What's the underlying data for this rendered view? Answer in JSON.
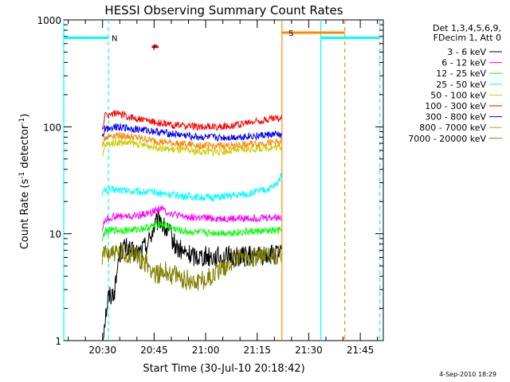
{
  "chart_data": {
    "type": "line",
    "title": "HESSI Observing Summary Count Rates",
    "xlabel": "Start Time (30-Jul-10 20:18:42)",
    "ylabel_main": "Count Rate (s",
    "ylabel_sup1": "-1",
    "ylabel_mid": " detector",
    "ylabel_sup2": "-1",
    "ylabel_end": ")",
    "footer": "4-Sep-2010 18:29",
    "yscale": "log",
    "ylim": [
      1,
      1000
    ],
    "xlim_minutes": [
      0,
      93
    ],
    "x_ticks": [
      {
        "label": "20:30",
        "minute": 11.3
      },
      {
        "label": "20:45",
        "minute": 26.3
      },
      {
        "label": "21:00",
        "minute": 41.3
      },
      {
        "label": "21:15",
        "minute": 56.3
      },
      {
        "label": "21:30",
        "minute": 71.3
      },
      {
        "label": "21:45",
        "minute": 86.3
      }
    ],
    "y_ticks": [
      {
        "label": "1",
        "value": 1
      },
      {
        "label": "10",
        "value": 10
      },
      {
        "label": "100",
        "value": 100
      },
      {
        "label": "1000",
        "value": 1000
      }
    ],
    "legend": {
      "header_line1": "Det 1,3,4,5,6,9,",
      "header_line2": "FDecim 1, Att 0"
    },
    "series": [
      {
        "name": "3 - 6 keV",
        "color": "#000000",
        "start": 11.2,
        "end": 63.5,
        "points": [
          [
            11.2,
            1
          ],
          [
            12,
            1.6
          ],
          [
            13,
            2.6
          ],
          [
            14,
            2.7
          ],
          [
            15,
            3.1
          ],
          [
            16,
            6.2
          ],
          [
            17,
            7.2
          ],
          [
            18,
            7.4
          ],
          [
            19,
            7.0
          ],
          [
            20,
            6.6
          ],
          [
            22,
            6.7
          ],
          [
            24,
            7.9
          ],
          [
            25,
            8.9
          ],
          [
            26,
            11.0
          ],
          [
            27,
            12.5
          ],
          [
            28,
            14.0
          ],
          [
            29,
            11.5
          ],
          [
            30,
            10.5
          ],
          [
            31,
            9.8
          ],
          [
            32,
            8.2
          ],
          [
            33,
            7.4
          ],
          [
            35,
            6.6
          ],
          [
            38,
            6.2
          ],
          [
            42,
            6.2
          ],
          [
            46,
            6.0
          ],
          [
            50,
            6.1
          ],
          [
            55,
            6.2
          ],
          [
            60,
            6.3
          ],
          [
            63.5,
            6.3
          ]
        ]
      },
      {
        "name": "6 - 12 keV",
        "color": "#ff00ff",
        "start": 11.2,
        "end": 63.5,
        "points": [
          [
            11.2,
            11
          ],
          [
            12,
            13.5
          ],
          [
            15,
            14.5
          ],
          [
            20,
            14.5
          ],
          [
            25,
            15.5
          ],
          [
            28,
            17.5
          ],
          [
            30,
            16
          ],
          [
            34,
            14.5
          ],
          [
            40,
            14
          ],
          [
            48,
            13.8
          ],
          [
            55,
            14
          ],
          [
            60,
            14.2
          ],
          [
            63.5,
            14.2
          ]
        ]
      },
      {
        "name": "12 - 25 keV",
        "color": "#00ff00",
        "start": 11.2,
        "end": 63.5,
        "points": [
          [
            11.2,
            9
          ],
          [
            12,
            10.5
          ],
          [
            15,
            10.8
          ],
          [
            20,
            10.8
          ],
          [
            25,
            11.5
          ],
          [
            28,
            12.5
          ],
          [
            30,
            11.8
          ],
          [
            34,
            10.6
          ],
          [
            40,
            10.2
          ],
          [
            48,
            10.2
          ],
          [
            55,
            10.5
          ],
          [
            60,
            10.6
          ],
          [
            63.5,
            10.7
          ]
        ]
      },
      {
        "name": "25 - 50 keV",
        "color": "#00ffff",
        "start": 11.2,
        "end": 63.5,
        "points": [
          [
            11.2,
            24
          ],
          [
            12,
            25.5
          ],
          [
            15,
            26
          ],
          [
            20,
            25
          ],
          [
            25,
            24.5
          ],
          [
            30,
            23.5
          ],
          [
            35,
            22.5
          ],
          [
            40,
            21.8
          ],
          [
            45,
            22
          ],
          [
            50,
            22.8
          ],
          [
            55,
            24
          ],
          [
            60,
            26.5
          ],
          [
            62,
            29
          ],
          [
            63.5,
            36
          ]
        ]
      },
      {
        "name": "50 - 100 keV",
        "color": "#cccc00",
        "start": 11.2,
        "end": 63.5,
        "points": [
          [
            11.2,
            50
          ],
          [
            12,
            67
          ],
          [
            15,
            72
          ],
          [
            20,
            70
          ],
          [
            25,
            66
          ],
          [
            30,
            62
          ],
          [
            35,
            60
          ],
          [
            40,
            58.5
          ],
          [
            45,
            58.5
          ],
          [
            50,
            60
          ],
          [
            55,
            62
          ],
          [
            60,
            64
          ],
          [
            63.5,
            65
          ]
        ]
      },
      {
        "name": "100 - 300 keV",
        "color": "#ff0000",
        "start": 11.2,
        "end": 63.5,
        "points": [
          [
            11.2,
            90
          ],
          [
            12,
            128
          ],
          [
            15,
            134
          ],
          [
            18,
            126
          ],
          [
            20,
            122
          ],
          [
            25,
            113
          ],
          [
            30,
            105
          ],
          [
            35,
            102
          ],
          [
            40,
            100
          ],
          [
            45,
            100
          ],
          [
            50,
            104
          ],
          [
            55,
            111
          ],
          [
            60,
            118
          ],
          [
            63.5,
            121
          ]
        ]
      },
      {
        "name": "300 - 800 keV",
        "color": "#0000ff",
        "start": 11.2,
        "end": 63.5,
        "points": [
          [
            11.2,
            80
          ],
          [
            12,
            96
          ],
          [
            15,
            101
          ],
          [
            20,
            96
          ],
          [
            25,
            92
          ],
          [
            30,
            87
          ],
          [
            35,
            83
          ],
          [
            40,
            80
          ],
          [
            45,
            79
          ],
          [
            50,
            80
          ],
          [
            55,
            82
          ],
          [
            60,
            84
          ],
          [
            63.5,
            85
          ]
        ]
      },
      {
        "name": "800 - 7000 keV",
        "color": "#ff8800",
        "start": 11.2,
        "end": 63.5,
        "points": [
          [
            11.2,
            65
          ],
          [
            12,
            80
          ],
          [
            15,
            84
          ],
          [
            20,
            80
          ],
          [
            25,
            75
          ],
          [
            30,
            71
          ],
          [
            35,
            69
          ],
          [
            40,
            67
          ],
          [
            45,
            66
          ],
          [
            50,
            67
          ],
          [
            55,
            69
          ],
          [
            60,
            71
          ],
          [
            63.5,
            72
          ]
        ]
      },
      {
        "name": "7000 - 20000 keV",
        "color": "#808000",
        "start": 11.2,
        "end": 63.5,
        "points": [
          [
            11.2,
            5.5
          ],
          [
            12,
            6.8
          ],
          [
            15,
            6.6
          ],
          [
            18,
            6.2
          ],
          [
            20,
            6.5
          ],
          [
            22,
            6.0
          ],
          [
            24,
            5.2
          ],
          [
            27,
            4.2
          ],
          [
            30,
            4.4
          ],
          [
            34,
            3.8
          ],
          [
            38,
            3.6
          ],
          [
            42,
            3.8
          ],
          [
            45,
            4.5
          ],
          [
            48,
            5.3
          ],
          [
            52,
            6.1
          ],
          [
            56,
            6.2
          ],
          [
            60,
            6.1
          ],
          [
            63.5,
            6.3
          ]
        ]
      }
    ],
    "annotations": [
      {
        "label": "N",
        "color": "#00ffff",
        "minute": 13.0,
        "value": 680
      },
      {
        "label": "F",
        "color": "#ff0000",
        "minute": 25.0,
        "value": 560
      },
      {
        "label": "S",
        "color": "#ff8800",
        "minute": 64.5,
        "value": 760
      }
    ],
    "night_segments": [
      [
        0,
        13.0
      ],
      [
        74.8,
        92.0
      ]
    ],
    "night_level": 680,
    "saa_segment": [
      63.5,
      81.8
    ],
    "saa_level": 760,
    "flare_segment": [
      25.6,
      27.6
    ],
    "flare_level": 560,
    "markers": [
      {
        "minute": 0,
        "color": "#00ffff",
        "style": "solid"
      },
      {
        "minute": 13.0,
        "color": "#00ffff",
        "style": "dashed"
      },
      {
        "minute": 63.5,
        "color": "#ff8800",
        "style": "solid"
      },
      {
        "minute": 74.8,
        "color": "#00ffff",
        "style": "solid"
      },
      {
        "minute": 81.8,
        "color": "#ff8800",
        "style": "dashed"
      },
      {
        "minute": 92.0,
        "color": "#00ffff",
        "style": "dashed"
      }
    ]
  }
}
